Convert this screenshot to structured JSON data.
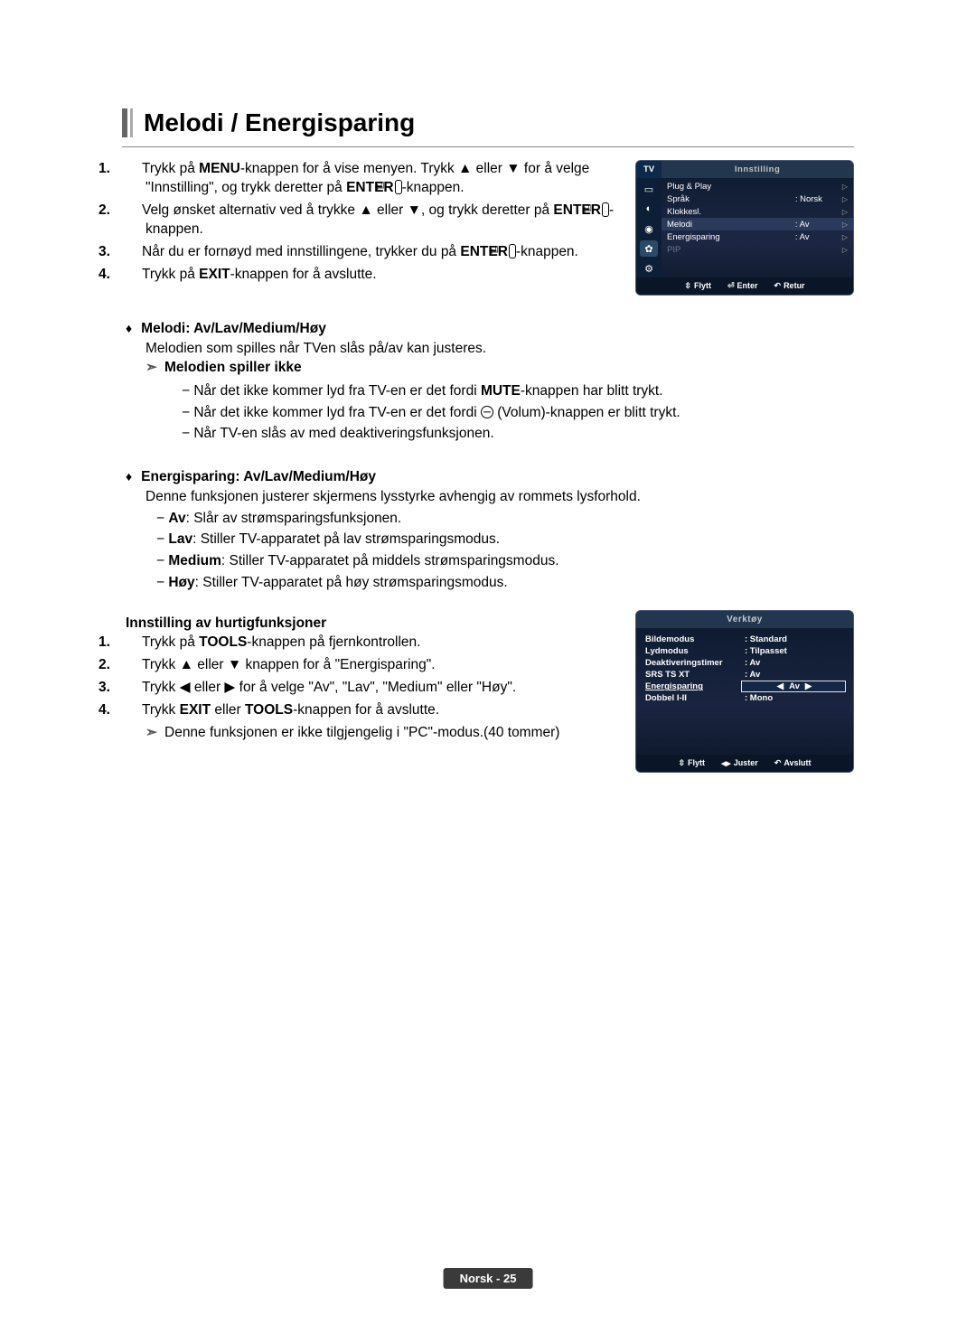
{
  "title": "Melodi / Energisparing",
  "steps_main": [
    {
      "n": "1.",
      "html": "Trykk på <b>MENU</b>-knappen for å vise menyen. Trykk ▲ eller ▼ for å velge \"Innstilling\", og trykk deretter på <b>ENTER</b><span class='enter-icon'>⏎</span>-knappen."
    },
    {
      "n": "2.",
      "html": "Velg ønsket alternativ ved å trykke ▲ eller ▼, og trykk deretter på <b>ENTER</b><span class='enter-icon'>⏎</span>-knappen."
    },
    {
      "n": "3.",
      "html": "Når du er fornøyd med innstillingene, trykker du på <b>ENTER</b><span class='enter-icon'>⏎</span>-knappen."
    },
    {
      "n": "4.",
      "html": "Trykk på <b>EXIT</b>-knappen for å avslutte."
    }
  ],
  "melodi": {
    "head": "Melodi: Av/Lav/Medium/Høy",
    "desc": "Melodien som spilles når TVen slås på/av kan justeres.",
    "sub_head": "Melodien spiller ikke",
    "bullets": [
      "Når det ikke kommer lyd fra TV-en er det fordi <b>MUTE</b>-knappen har blitt trykt.",
      "Når det ikke kommer lyd fra TV-en er det fordi <span class='minus-circ'></span> (Volum)-knappen er blitt trykt.",
      "Når TV-en slås av med deaktiveringsfunksjonen."
    ]
  },
  "energi": {
    "head": "Energisparing: Av/Lav/Medium/Høy",
    "desc": "Denne funksjonen justerer skjermens lysstyrke avhengig av rommets lysforhold.",
    "bullets": [
      "<b>Av</b>: Slår av strømsparingsfunksjonen.",
      "<b>Lav</b>: Stiller TV-apparatet på lav strømsparingsmodus.",
      "<b>Medium</b>: Stiller TV-apparatet på middels strømsparingsmodus.",
      "<b>Høy</b>: Stiller TV-apparatet på høy strømsparingsmodus."
    ]
  },
  "quick": {
    "head": "Innstilling av hurtigfunksjoner",
    "steps": [
      {
        "n": "1.",
        "html": "Trykk på <b>TOOLS</b>-knappen på fjernkontrollen."
      },
      {
        "n": "2.",
        "html": "Trykk ▲ eller ▼ knappen for å \"Energisparing\"."
      },
      {
        "n": "3.",
        "html": "Trykk ◀ eller ▶ for å velge \"Av\", \"Lav\", \"Medium\" eller \"Høy\"."
      },
      {
        "n": "4.",
        "html": "Trykk <b>EXIT</b> eller <b>TOOLS</b>-knappen for å avslutte."
      }
    ],
    "note": "Denne funksjonen er ikke tilgjengelig i \"PC\"-modus.(40 tommer)"
  },
  "osd1": {
    "tv": "TV",
    "title": "Innstilling",
    "rows": [
      {
        "lbl": "Plug & Play",
        "val": "",
        "arr": "▷"
      },
      {
        "lbl": "Språk",
        "val": ": Norsk",
        "arr": "▷"
      },
      {
        "lbl": "Klokkesl.",
        "val": "",
        "arr": "▷"
      },
      {
        "lbl": "Melodi",
        "val": ": Av",
        "arr": "▷",
        "hl": true
      },
      {
        "lbl": "Energisparing",
        "val": ": Av",
        "arr": "▷"
      },
      {
        "lbl": "PIP",
        "val": "",
        "arr": "▷",
        "dim": true
      }
    ],
    "foot": {
      "a": "Flytt",
      "b": "Enter",
      "c": "Retur"
    },
    "side_icons": [
      "▭",
      "◐",
      "◉",
      "✿",
      "⚙"
    ]
  },
  "osd2": {
    "title": "Verktøy",
    "rows": [
      {
        "l": "Bildemodus",
        "v": ": Standard"
      },
      {
        "l": "Lydmodus",
        "v": ": Tilpasset"
      },
      {
        "l": "Deaktiveringstimer",
        "v": ": Av"
      },
      {
        "l": "SRS TS XT",
        "v": ": Av"
      },
      {
        "l": "Energisparing",
        "v": "Av",
        "sel": true,
        "ul": true
      },
      {
        "l": "Dobbel I-II",
        "v": ": Mono"
      }
    ],
    "foot": {
      "a": "Flytt",
      "b": "Juster",
      "c": "Avslutt"
    }
  },
  "footer": "Norsk - 25"
}
